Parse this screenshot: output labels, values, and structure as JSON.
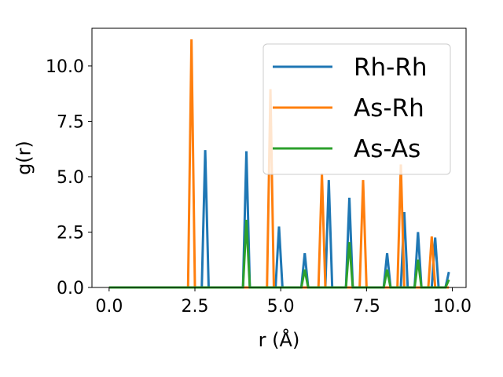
{
  "chart_data": {
    "type": "line",
    "xlabel": "r (Å)",
    "ylabel": "g(r)",
    "xlim": [
      -0.5,
      10.4
    ],
    "ylim": [
      0.0,
      11.7
    ],
    "xticks": [
      0.0,
      2.5,
      5.0,
      7.5,
      10.0
    ],
    "xtick_labels": [
      "0.0",
      "2.5",
      "5.0",
      "7.5",
      "10.0"
    ],
    "yticks": [
      0.0,
      2.5,
      5.0,
      7.5,
      10.0
    ],
    "ytick_labels": [
      "0.0",
      "2.5",
      "5.0",
      "7.5",
      "10.0"
    ],
    "grid": false,
    "legend_position": "upper right",
    "x_range": [
      0.0,
      9.9
    ],
    "series": [
      {
        "name": "Rh-Rh",
        "color": "#1f77b4",
        "peaks": [
          {
            "x": 2.8,
            "y": 6.2
          },
          {
            "x": 4.0,
            "y": 6.15
          },
          {
            "x": 4.95,
            "y": 2.75
          },
          {
            "x": 5.7,
            "y": 1.55
          },
          {
            "x": 6.4,
            "y": 4.85
          },
          {
            "x": 7.0,
            "y": 4.05
          },
          {
            "x": 8.1,
            "y": 1.55
          },
          {
            "x": 8.6,
            "y": 3.4
          },
          {
            "x": 9.0,
            "y": 2.5
          },
          {
            "x": 9.5,
            "y": 2.25
          },
          {
            "x": 9.9,
            "y": 0.7
          }
        ]
      },
      {
        "name": "As-Rh",
        "color": "#ff7f0e",
        "peaks": [
          {
            "x": 2.4,
            "y": 11.2
          },
          {
            "x": 4.7,
            "y": 8.95
          },
          {
            "x": 6.2,
            "y": 5.15
          },
          {
            "x": 7.4,
            "y": 4.85
          },
          {
            "x": 8.5,
            "y": 5.55
          },
          {
            "x": 9.4,
            "y": 2.3
          }
        ]
      },
      {
        "name": "As-As",
        "color": "#2ca02c",
        "peaks": [
          {
            "x": 4.0,
            "y": 3.05
          },
          {
            "x": 5.7,
            "y": 0.8
          },
          {
            "x": 7.0,
            "y": 2.05
          },
          {
            "x": 8.1,
            "y": 0.8
          },
          {
            "x": 9.0,
            "y": 1.25
          },
          {
            "x": 9.9,
            "y": 0.35
          }
        ]
      }
    ]
  }
}
